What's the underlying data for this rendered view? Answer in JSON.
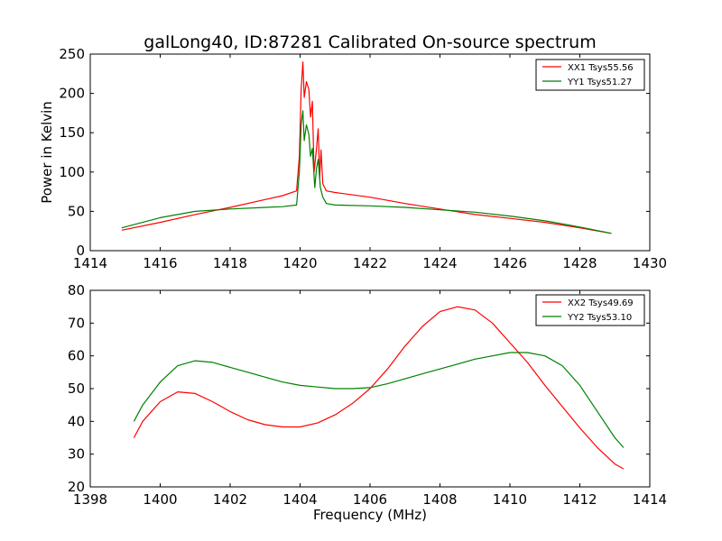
{
  "figure": {
    "title": "galLong40, ID:87281 Calibrated On-source spectrum"
  },
  "chart_data": [
    {
      "type": "line",
      "title": "galLong40, ID:87281 Calibrated On-source spectrum",
      "xlabel": "",
      "ylabel": "Power in Kelvin",
      "xlim": [
        1414,
        1430
      ],
      "ylim": [
        0,
        250
      ],
      "xticks": [
        1414,
        1416,
        1418,
        1420,
        1422,
        1424,
        1426,
        1428,
        1430
      ],
      "yticks": [
        0,
        50,
        100,
        150,
        200,
        250
      ],
      "grid": false,
      "legend": "top-right",
      "series": [
        {
          "name": "XX1 Tsys55.56",
          "color": "#ff0000",
          "x": [
            1414.9,
            1416,
            1417,
            1418,
            1419,
            1419.5,
            1419.9,
            1419.98,
            1420.03,
            1420.08,
            1420.12,
            1420.18,
            1420.25,
            1420.3,
            1420.35,
            1420.4,
            1420.46,
            1420.52,
            1420.56,
            1420.6,
            1420.65,
            1420.75,
            1421,
            1422,
            1423,
            1424,
            1425,
            1426,
            1427,
            1428,
            1428.9
          ],
          "y": [
            26,
            36,
            46,
            55,
            65,
            70,
            76,
            120,
            205,
            240,
            195,
            215,
            205,
            170,
            190,
            100,
            125,
            155,
            92,
            128,
            85,
            76,
            74,
            68,
            60,
            53,
            46,
            41,
            36,
            29,
            22
          ]
        },
        {
          "name": "YY1 Tsys51.27",
          "color": "#008000",
          "x": [
            1414.9,
            1416,
            1417,
            1418,
            1419,
            1419.5,
            1419.9,
            1419.98,
            1420.03,
            1420.08,
            1420.12,
            1420.18,
            1420.25,
            1420.3,
            1420.35,
            1420.42,
            1420.47,
            1420.52,
            1420.58,
            1420.65,
            1420.75,
            1421,
            1422,
            1423,
            1424,
            1425,
            1426,
            1427,
            1428,
            1428.9
          ],
          "y": [
            29,
            42,
            50,
            53,
            55,
            56,
            58,
            100,
            160,
            178,
            140,
            160,
            148,
            120,
            130,
            80,
            105,
            116,
            80,
            68,
            60,
            58,
            57,
            55,
            52,
            49,
            44,
            38,
            30,
            22
          ]
        }
      ]
    },
    {
      "type": "line",
      "title": "",
      "xlabel": "Frequency (MHz)",
      "ylabel": "",
      "xlim": [
        1398,
        1414
      ],
      "ylim": [
        20,
        80
      ],
      "xticks": [
        1398,
        1400,
        1402,
        1404,
        1406,
        1408,
        1410,
        1412,
        1414
      ],
      "yticks": [
        20,
        30,
        40,
        50,
        60,
        70,
        80
      ],
      "grid": false,
      "legend": "top-right",
      "series": [
        {
          "name": "XX2 Tsys49.69",
          "color": "#ff0000",
          "x": [
            1399.25,
            1399.5,
            1400,
            1400.5,
            1401,
            1401.5,
            1402,
            1402.5,
            1403,
            1403.5,
            1404,
            1404.5,
            1405,
            1405.5,
            1406,
            1406.5,
            1407,
            1407.5,
            1408,
            1408.5,
            1409,
            1409.5,
            1410,
            1410.5,
            1411,
            1411.5,
            1412,
            1412.5,
            1413,
            1413.25
          ],
          "y": [
            35,
            40,
            46,
            49,
            48.5,
            46,
            43,
            40.5,
            39,
            38.3,
            38.3,
            39.5,
            42,
            45.5,
            50,
            56,
            63,
            69,
            73.5,
            75,
            74,
            70,
            64,
            58,
            51,
            44.5,
            38,
            32,
            27,
            25.5
          ]
        },
        {
          "name": "YY2 Tsys53.10",
          "color": "#008000",
          "x": [
            1399.25,
            1399.5,
            1400,
            1400.5,
            1401,
            1401.5,
            1402,
            1402.5,
            1403,
            1403.5,
            1404,
            1404.5,
            1405,
            1405.5,
            1406,
            1406.5,
            1407,
            1407.5,
            1408,
            1408.5,
            1409,
            1409.5,
            1410,
            1410.5,
            1411,
            1411.5,
            1412,
            1412.5,
            1413,
            1413.25
          ],
          "y": [
            40,
            45,
            52,
            57,
            58.5,
            58,
            56.5,
            55,
            53.5,
            52,
            51,
            50.5,
            50,
            50,
            50.3,
            51.5,
            53,
            54.5,
            56,
            57.5,
            59,
            60,
            61,
            61,
            60,
            57,
            51,
            43,
            35,
            32
          ]
        }
      ]
    }
  ]
}
